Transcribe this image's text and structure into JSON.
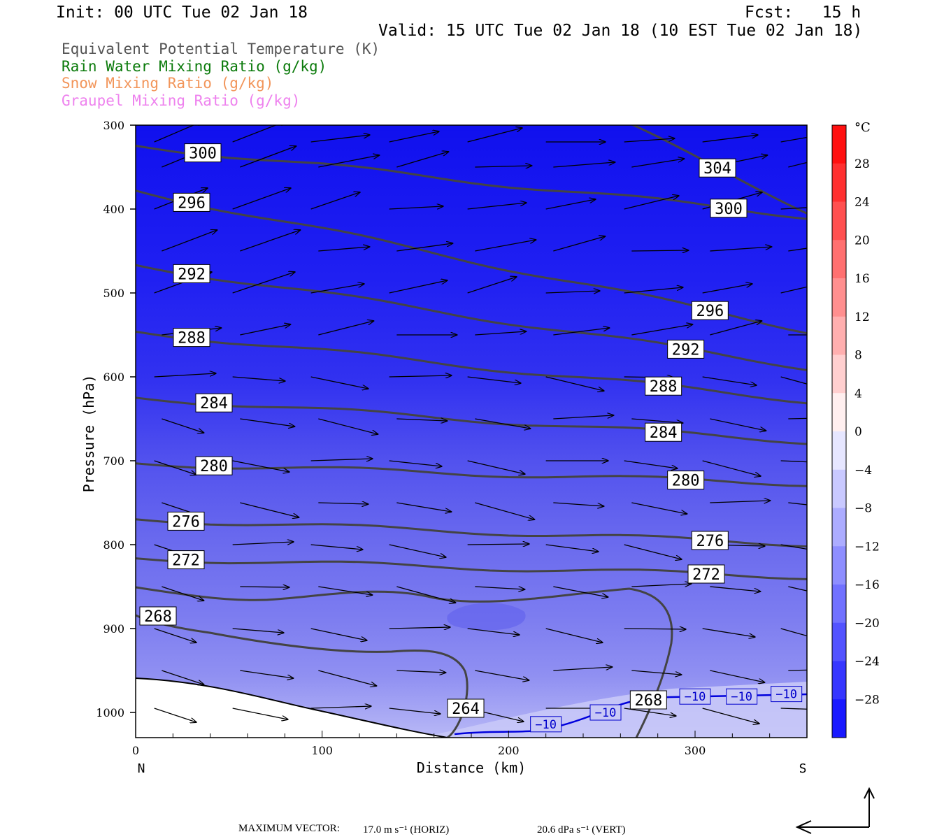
{
  "header": {
    "init": "Init: 00 UTC Tue 02 Jan 18",
    "fcst": "Fcst:   15 h",
    "valid": "Valid: 15 UTC Tue 02 Jan 18 (10 EST Tue 02 Jan 18)"
  },
  "legend": [
    {
      "label": "Equivalent Potential Temperature (K)",
      "color": "#555555"
    },
    {
      "label": "Rain Water Mixing Ratio (g/kg)",
      "color": "#0a7a0a"
    },
    {
      "label": "Snow Mixing Ratio (g/kg)",
      "color": "#f2955a"
    },
    {
      "label": "Graupel Mixing Ratio (g/kg)",
      "color": "#ee82ee"
    }
  ],
  "chart_data": {
    "type": "contour",
    "xlabel": "Distance (km)",
    "ylabel": "Pressure (hPa)",
    "xlim": [
      0,
      360
    ],
    "ylim": [
      1030,
      300
    ],
    "x_ticks": [
      0,
      100,
      200,
      300
    ],
    "y_ticks": [
      300,
      400,
      500,
      600,
      700,
      800,
      900,
      1000
    ],
    "x_end_labels": {
      "left": "N",
      "right": "S"
    },
    "theta_e_contours": [
      {
        "value": 264,
        "label_at": [
          177,
          995
        ]
      },
      {
        "value": 268,
        "label_at": [
          12,
          885
        ],
        "label2_at": [
          275,
          985
        ]
      },
      {
        "value": 272,
        "label_at": [
          27,
          818
        ],
        "label2_at": [
          306,
          835
        ]
      },
      {
        "value": 276,
        "label_at": [
          27,
          772
        ],
        "label2_at": [
          308,
          795
        ]
      },
      {
        "value": 280,
        "label_at": [
          42,
          706
        ],
        "label2_at": [
          295,
          723
        ]
      },
      {
        "value": 284,
        "label_at": [
          42,
          631
        ],
        "label2_at": [
          283,
          666
        ]
      },
      {
        "value": 288,
        "label_at": [
          30,
          553
        ],
        "label2_at": [
          283,
          611
        ]
      },
      {
        "value": 292,
        "label_at": [
          30,
          477
        ],
        "label2_at": [
          295,
          567
        ]
      },
      {
        "value": 296,
        "label_at": [
          30,
          392
        ],
        "label2_at": [
          308,
          521
        ]
      },
      {
        "value": 300,
        "label_at": [
          36,
          333
        ],
        "label2_at": [
          318,
          399
        ]
      },
      {
        "value": 304,
        "label_at": [
          312,
          351
        ]
      }
    ],
    "temperature_contour": {
      "value": -10,
      "labels": [
        "−10",
        "−10",
        "−10",
        "−10",
        "−10"
      ]
    },
    "colorbar": {
      "unit": "°C",
      "tick_labels": [
        "28",
        "24",
        "20",
        "16",
        "12",
        "8",
        "4",
        "0",
        "−4",
        "−8",
        "−12",
        "−16",
        "−20",
        "−24",
        "−28"
      ],
      "range": [
        -32,
        32
      ],
      "step": 4
    },
    "vector_key": {
      "prefix": "MAXIMUM VECTOR:",
      "horiz": "17.0 m s⁻¹ (HORIZ)",
      "vert": "20.6 dPa s⁻¹ (VERT)"
    }
  }
}
